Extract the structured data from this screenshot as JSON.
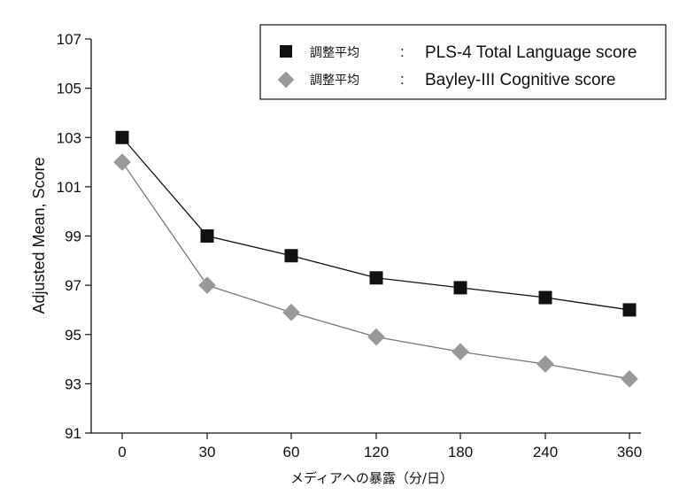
{
  "chart_data": {
    "type": "line",
    "title": "",
    "xlabel": "メディアへの暴露（分/日）",
    "ylabel": "Adjusted Mean, Score",
    "categories": [
      "0",
      "30",
      "60",
      "120",
      "180",
      "240",
      "360"
    ],
    "yticks": [
      "91",
      "93",
      "95",
      "97",
      "99",
      "101",
      "103",
      "105",
      "107"
    ],
    "ylim": [
      91,
      107
    ],
    "grid": false,
    "legend_position": "top-right",
    "series": [
      {
        "name": "PLS-4 Total Language score",
        "legend_prefix": "調整平均",
        "legend_separator": ":",
        "marker": "square",
        "color": "#111111",
        "values": [
          103.0,
          99.0,
          98.2,
          97.3,
          96.9,
          96.5,
          96.0
        ]
      },
      {
        "name": "Bayley-III Cognitive score",
        "legend_prefix": "調整平均",
        "legend_separator": ":",
        "marker": "diamond",
        "color": "#999999",
        "line_color": "#777777",
        "values": [
          102.0,
          97.0,
          95.9,
          94.9,
          94.3,
          93.8,
          93.2
        ]
      }
    ]
  }
}
